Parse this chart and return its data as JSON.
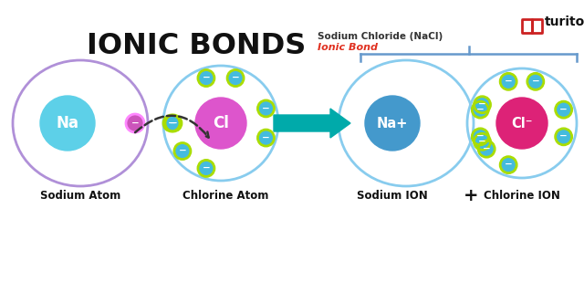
{
  "title": "IONIC BONDS",
  "subtitle1": "Sodium Chloride (NaCl)",
  "subtitle2": "Ionic Bond",
  "subtitle2_color": "#e03020",
  "bg_color": "#ffffff",
  "label_sodium_atom": "Sodium Atom",
  "label_chlorine_atom": "Chlorine Atom",
  "label_sodium_ion": "Sodium ION",
  "label_plus": "+",
  "label_chlorine_ion": "Chlorine ION",
  "na_color_top": "#5dd0e8",
  "na_color_bot": "#2890b0",
  "na_outer_color": "#b090d8",
  "cl_color_top": "#dd55cc",
  "cl_color_bot": "#991188",
  "cl_outer_color": "#88ccee",
  "na_ion_color": "#4499cc",
  "cl_ion_color": "#dd2277",
  "electron_fill_top": "#55ccee",
  "electron_fill_bot": "#2288aa",
  "electron_border": "#aadd00",
  "electron_text": "#ffffff",
  "arrow_color": "#00aaaa",
  "brace_color": "#6699cc",
  "turito_red": "#cc2222",
  "turito_dark": "#111111",
  "na_electron_border": "#cc66cc",
  "na_electron_fill_top": "#cc66cc",
  "na_electron_fill_bot": "#884499"
}
